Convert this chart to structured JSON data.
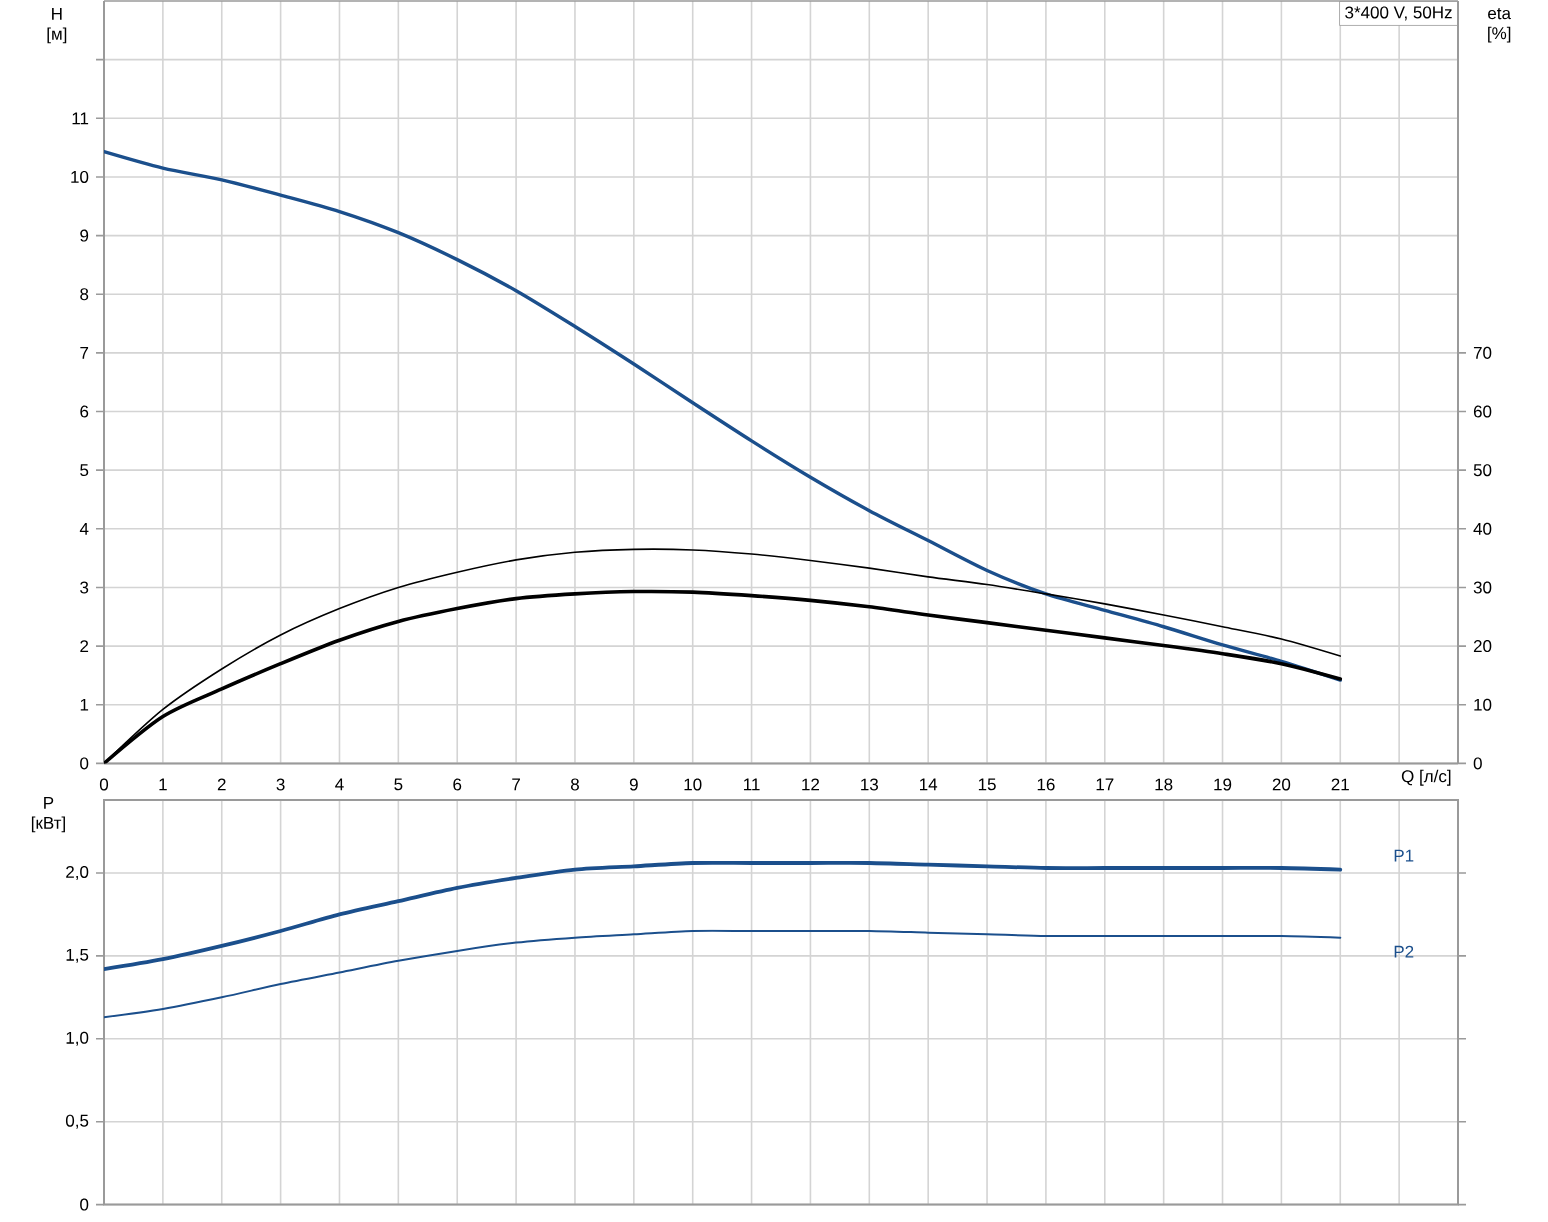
{
  "chart_data": [
    {
      "type": "line",
      "title": "3*400 V, 50Hz",
      "xlabel": "Q [л/с]",
      "ylabel": "H [м]",
      "y2label": "eta [%]",
      "x": [
        0,
        1,
        2,
        3,
        4,
        5,
        6,
        7,
        8,
        9,
        10,
        11,
        12,
        13,
        14,
        15,
        16,
        17,
        18,
        19,
        20,
        21
      ],
      "xlim": [
        0,
        23
      ],
      "xticks": [
        0,
        1,
        2,
        3,
        4,
        5,
        6,
        7,
        8,
        9,
        10,
        11,
        12,
        13,
        14,
        15,
        16,
        17,
        18,
        19,
        20,
        21,
        {
          "value": 22,
          "label": null
        }
      ],
      "ylim": [
        0,
        13
      ],
      "yticks": [
        0,
        1,
        2,
        3,
        4,
        5,
        6,
        7,
        8,
        9,
        10,
        11,
        {
          "value": 12,
          "label": null
        }
      ],
      "y2lim": [
        0,
        130
      ],
      "y2ticks": [
        0,
        10,
        20,
        30,
        40,
        50,
        60,
        70
      ],
      "grid": true,
      "series": [
        {
          "color": "#1b4f8c",
          "values": [
            10.43,
            10.15,
            9.95,
            9.69,
            9.41,
            9.05,
            8.59,
            8.06,
            7.45,
            6.81,
            6.15,
            5.5,
            4.88,
            4.31,
            3.8,
            3.29,
            2.89,
            2.61,
            2.33,
            2.02,
            1.74,
            1.42
          ]
        },
        {
          "color": "#000000",
          "axis": "y2",
          "values": [
            0,
            9.2,
            16.1,
            21.9,
            26.4,
            30.0,
            32.6,
            34.7,
            36.0,
            36.5,
            36.4,
            35.7,
            34.6,
            33.3,
            31.8,
            30.5,
            28.9,
            27.2,
            25.3,
            23.3,
            21.2,
            18.3
          ]
        },
        {
          "color": "#000000",
          "axis": "y2",
          "values": [
            0,
            8.0,
            12.7,
            17.0,
            21.0,
            24.2,
            26.4,
            28.1,
            28.9,
            29.3,
            29.2,
            28.6,
            27.8,
            26.7,
            25.3,
            24.0,
            22.7,
            21.4,
            20.1,
            18.7,
            17.0,
            14.4
          ]
        }
      ]
    },
    {
      "type": "line",
      "ylabel": "P [кВт]",
      "x": [
        0,
        1,
        2,
        3,
        4,
        5,
        6,
        7,
        8,
        9,
        10,
        11,
        12,
        13,
        14,
        15,
        16,
        17,
        18,
        19,
        20,
        21
      ],
      "xlim": [
        0,
        23
      ],
      "xticks": [
        0,
        1,
        2,
        3,
        4,
        5,
        6,
        7,
        8,
        9,
        10,
        11,
        12,
        13,
        14,
        15,
        16,
        17,
        18,
        19,
        20,
        21,
        {
          "value": 22,
          "label": null
        }
      ],
      "ylim": [
        0,
        2.44
      ],
      "yticks": [
        0,
        {
          "value": 0.5,
          "label": "0,5"
        },
        {
          "value": 1,
          "label": "1,0"
        },
        {
          "value": 1.5,
          "label": "1,5"
        },
        {
          "value": 2,
          "label": "2,0"
        }
      ],
      "tick_labels": "y",
      "grid": true,
      "series": [
        {
          "name": "P1",
          "color": "#1b4f8c",
          "values": [
            1.42,
            1.48,
            1.56,
            1.65,
            1.75,
            1.83,
            1.91,
            1.97,
            2.02,
            2.04,
            2.06,
            2.06,
            2.06,
            2.06,
            2.05,
            2.04,
            2.03,
            2.03,
            2.03,
            2.03,
            2.03,
            2.02
          ]
        },
        {
          "name": "P2",
          "color": "#1b4f8c",
          "values": [
            1.13,
            1.18,
            1.25,
            1.33,
            1.4,
            1.47,
            1.53,
            1.58,
            1.61,
            1.63,
            1.65,
            1.65,
            1.65,
            1.65,
            1.64,
            1.63,
            1.62,
            1.62,
            1.62,
            1.62,
            1.62,
            1.61
          ]
        }
      ]
    }
  ]
}
